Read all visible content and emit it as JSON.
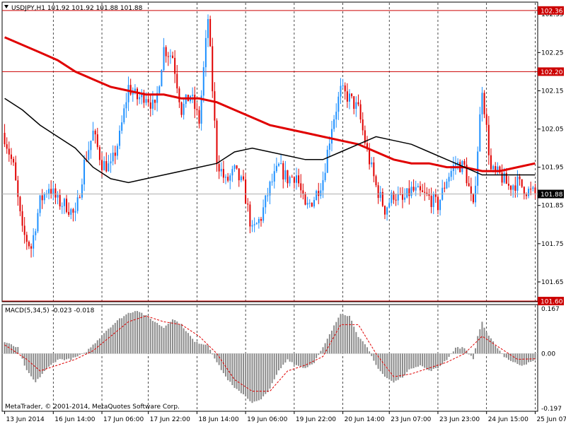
{
  "window": {
    "title": "USDJPY,H1  101.92 101.92 101.88 101.88",
    "macd_title": "MACD(5,34,5) -0.023 -0.018",
    "copyright": "MetaTrader, © 2001-2014, MetaQuotes Software Corp."
  },
  "colors": {
    "background": "#ffffff",
    "bull": "#1e90ff",
    "bear": "#e00000",
    "ma_fast": "#000000",
    "ma_slow": "#e00000",
    "hline": "#cc0000",
    "bid_line": "#b0b0b0",
    "macd_bar": "#8c8c8c",
    "macd_signal": "#e00000",
    "grid": "#000000"
  },
  "chart_data": [
    {
      "type": "candlestick",
      "symbol": "USDJPY",
      "timeframe": "H1",
      "price_ylim": [
        101.6,
        102.38
      ],
      "y_ticks": [
        102.35,
        102.25,
        102.15,
        102.05,
        101.95,
        101.85,
        101.75,
        101.65
      ],
      "y_tick_labels": [
        "102.35",
        "102.25",
        "102.15",
        "102.05",
        "101.95",
        "101.85",
        "101.75",
        "101.65"
      ],
      "x_tick_labels": [
        "13 Jun 2014",
        "16 Jun 14:00",
        "17 Jun 06:00",
        "17 Jun 22:00",
        "18 Jun 14:00",
        "19 Jun 06:00",
        "19 Jun 22:00",
        "20 Jun 14:00",
        "23 Jun 07:00",
        "23 Jun 23:00",
        "24 Jun 15:00",
        "25 Jun 07:00"
      ],
      "horizontal_lines": [
        {
          "value": 102.36,
          "label": "102.36"
        },
        {
          "value": 102.2,
          "label": "102.20"
        },
        {
          "value": 101.6,
          "label": "101.60"
        }
      ],
      "current_price": {
        "value": 101.88,
        "label": "101.88"
      },
      "close_path": [
        [
          0,
          102.03
        ],
        [
          4,
          101.95
        ],
        [
          8,
          101.78
        ],
        [
          12,
          101.74
        ],
        [
          16,
          101.86
        ],
        [
          20,
          101.9
        ],
        [
          24,
          101.86
        ],
        [
          28,
          101.85
        ],
        [
          32,
          101.82
        ],
        [
          36,
          101.96
        ],
        [
          40,
          102.04
        ],
        [
          44,
          101.96
        ],
        [
          48,
          101.95
        ],
        [
          52,
          102.03
        ],
        [
          56,
          102.16
        ],
        [
          60,
          102.13
        ],
        [
          64,
          102.14
        ],
        [
          68,
          102.1
        ],
        [
          72,
          102.26
        ],
        [
          76,
          102.24
        ],
        [
          80,
          102.1
        ],
        [
          84,
          102.14
        ],
        [
          88,
          102.07
        ],
        [
          92,
          102.34
        ],
        [
          96,
          101.97
        ],
        [
          100,
          101.91
        ],
        [
          104,
          101.94
        ],
        [
          108,
          101.9
        ],
        [
          112,
          101.78
        ],
        [
          116,
          101.82
        ],
        [
          120,
          101.9
        ],
        [
          124,
          101.95
        ],
        [
          128,
          101.92
        ],
        [
          132,
          101.93
        ],
        [
          136,
          101.84
        ],
        [
          140,
          101.87
        ],
        [
          144,
          101.92
        ],
        [
          148,
          102.06
        ],
        [
          152,
          102.15
        ],
        [
          156,
          102.13
        ],
        [
          160,
          102.1
        ],
        [
          164,
          101.99
        ],
        [
          168,
          101.9
        ],
        [
          172,
          101.84
        ],
        [
          176,
          101.88
        ],
        [
          180,
          101.86
        ],
        [
          184,
          101.89
        ],
        [
          188,
          101.88
        ],
        [
          192,
          101.87
        ],
        [
          196,
          101.85
        ],
        [
          200,
          101.92
        ],
        [
          204,
          101.96
        ],
        [
          208,
          101.95
        ],
        [
          212,
          101.84
        ],
        [
          216,
          102.16
        ],
        [
          220,
          101.94
        ],
        [
          224,
          101.93
        ],
        [
          228,
          101.9
        ],
        [
          232,
          101.91
        ],
        [
          236,
          101.89
        ],
        [
          240,
          101.88
        ]
      ],
      "ma_fast": [
        [
          0,
          102.13
        ],
        [
          8,
          102.1
        ],
        [
          16,
          102.06
        ],
        [
          24,
          102.03
        ],
        [
          32,
          102.0
        ],
        [
          40,
          101.95
        ],
        [
          48,
          101.92
        ],
        [
          56,
          101.91
        ],
        [
          64,
          101.92
        ],
        [
          72,
          101.93
        ],
        [
          80,
          101.94
        ],
        [
          88,
          101.95
        ],
        [
          96,
          101.96
        ],
        [
          104,
          101.99
        ],
        [
          112,
          102.0
        ],
        [
          120,
          101.99
        ],
        [
          128,
          101.98
        ],
        [
          136,
          101.97
        ],
        [
          144,
          101.97
        ],
        [
          152,
          101.99
        ],
        [
          160,
          102.01
        ],
        [
          168,
          102.03
        ],
        [
          176,
          102.02
        ],
        [
          184,
          102.01
        ],
        [
          192,
          101.99
        ],
        [
          200,
          101.97
        ],
        [
          208,
          101.95
        ],
        [
          216,
          101.93
        ],
        [
          224,
          101.93
        ],
        [
          232,
          101.93
        ],
        [
          240,
          101.93
        ]
      ],
      "ma_slow": [
        [
          0,
          102.29
        ],
        [
          8,
          102.27
        ],
        [
          16,
          102.25
        ],
        [
          24,
          102.23
        ],
        [
          32,
          102.2
        ],
        [
          40,
          102.18
        ],
        [
          48,
          102.16
        ],
        [
          56,
          102.15
        ],
        [
          64,
          102.14
        ],
        [
          72,
          102.14
        ],
        [
          80,
          102.13
        ],
        [
          88,
          102.13
        ],
        [
          96,
          102.12
        ],
        [
          104,
          102.1
        ],
        [
          112,
          102.08
        ],
        [
          120,
          102.06
        ],
        [
          128,
          102.05
        ],
        [
          136,
          102.04
        ],
        [
          144,
          102.03
        ],
        [
          152,
          102.02
        ],
        [
          160,
          102.01
        ],
        [
          168,
          101.99
        ],
        [
          176,
          101.97
        ],
        [
          184,
          101.96
        ],
        [
          192,
          101.96
        ],
        [
          200,
          101.95
        ],
        [
          208,
          101.95
        ],
        [
          216,
          101.94
        ],
        [
          224,
          101.94
        ],
        [
          232,
          101.95
        ],
        [
          240,
          101.96
        ]
      ]
    },
    {
      "type": "bar",
      "name": "MACD(5,34,5)",
      "ylim": [
        -0.197,
        0.167
      ],
      "y_tick_labels": [
        "0.167",
        "0.00",
        "-0.197"
      ],
      "y_ticks": [
        0.167,
        0,
        -0.197
      ],
      "histogram_path": [
        [
          0,
          0.04
        ],
        [
          6,
          0.02
        ],
        [
          10,
          -0.06
        ],
        [
          14,
          -0.1
        ],
        [
          18,
          -0.06
        ],
        [
          24,
          -0.02
        ],
        [
          30,
          -0.02
        ],
        [
          36,
          0.0
        ],
        [
          40,
          0.03
        ],
        [
          46,
          0.08
        ],
        [
          52,
          0.12
        ],
        [
          56,
          0.14
        ],
        [
          60,
          0.15
        ],
        [
          66,
          0.12
        ],
        [
          72,
          0.09
        ],
        [
          76,
          0.12
        ],
        [
          80,
          0.1
        ],
        [
          86,
          0.04
        ],
        [
          92,
          0.03
        ],
        [
          96,
          -0.03
        ],
        [
          100,
          -0.08
        ],
        [
          104,
          -0.12
        ],
        [
          108,
          -0.14
        ],
        [
          112,
          -0.17
        ],
        [
          116,
          -0.16
        ],
        [
          120,
          -0.12
        ],
        [
          124,
          -0.06
        ],
        [
          128,
          -0.02
        ],
        [
          132,
          -0.04
        ],
        [
          136,
          -0.05
        ],
        [
          140,
          -0.03
        ],
        [
          144,
          0.02
        ],
        [
          148,
          0.08
        ],
        [
          152,
          0.14
        ],
        [
          156,
          0.13
        ],
        [
          160,
          0.06
        ],
        [
          164,
          0.02
        ],
        [
          168,
          -0.04
        ],
        [
          172,
          -0.08
        ],
        [
          176,
          -0.1
        ],
        [
          180,
          -0.08
        ],
        [
          184,
          -0.05
        ],
        [
          188,
          -0.04
        ],
        [
          192,
          -0.06
        ],
        [
          196,
          -0.05
        ],
        [
          200,
          -0.02
        ],
        [
          204,
          0.02
        ],
        [
          208,
          0.02
        ],
        [
          212,
          -0.02
        ],
        [
          214,
          0.06
        ],
        [
          216,
          0.11
        ],
        [
          218,
          0.07
        ],
        [
          222,
          0.03
        ],
        [
          226,
          -0.01
        ],
        [
          230,
          -0.03
        ],
        [
          234,
          -0.04
        ],
        [
          238,
          -0.03
        ],
        [
          240,
          -0.023
        ]
      ],
      "signal_path": [
        [
          0,
          0.03
        ],
        [
          10,
          -0.02
        ],
        [
          16,
          -0.06
        ],
        [
          24,
          -0.04
        ],
        [
          32,
          -0.02
        ],
        [
          40,
          0.01
        ],
        [
          48,
          0.06
        ],
        [
          56,
          0.11
        ],
        [
          64,
          0.13
        ],
        [
          72,
          0.11
        ],
        [
          80,
          0.1
        ],
        [
          88,
          0.06
        ],
        [
          96,
          0.0
        ],
        [
          104,
          -0.09
        ],
        [
          112,
          -0.13
        ],
        [
          120,
          -0.13
        ],
        [
          128,
          -0.06
        ],
        [
          136,
          -0.04
        ],
        [
          144,
          -0.01
        ],
        [
          152,
          0.1
        ],
        [
          160,
          0.1
        ],
        [
          168,
          0.0
        ],
        [
          176,
          -0.08
        ],
        [
          184,
          -0.07
        ],
        [
          192,
          -0.05
        ],
        [
          200,
          -0.03
        ],
        [
          208,
          0.0
        ],
        [
          216,
          0.06
        ],
        [
          224,
          0.02
        ],
        [
          232,
          -0.02
        ],
        [
          240,
          -0.018
        ]
      ]
    }
  ]
}
